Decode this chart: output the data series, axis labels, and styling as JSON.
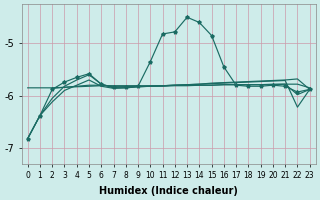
{
  "xlabel": "Humidex (Indice chaleur)",
  "background_color": "#ceecea",
  "line_color": "#1a6b63",
  "xlim": [
    -0.5,
    23.5
  ],
  "ylim": [
    -7.3,
    -4.25
  ],
  "yticks": [
    -7,
    -6,
    -5
  ],
  "xtick_labels": [
    "0",
    "1",
    "2",
    "3",
    "4",
    "5",
    "6",
    "7",
    "8",
    "9",
    "10",
    "11",
    "12",
    "13",
    "14",
    "15",
    "16",
    "17",
    "18",
    "19",
    "20",
    "21",
    "22",
    "23"
  ],
  "line_gradual": {
    "x": [
      0,
      1,
      2,
      3,
      4,
      5,
      6,
      7,
      8,
      9,
      10,
      11,
      12,
      13,
      14,
      15,
      16,
      17,
      18,
      19,
      20,
      21,
      22,
      23
    ],
    "y": [
      -6.82,
      -6.38,
      -6.05,
      -5.82,
      -5.7,
      -5.6,
      -5.78,
      -5.85,
      -5.85,
      -5.83,
      -5.82,
      -5.81,
      -5.8,
      -5.79,
      -5.78,
      -5.76,
      -5.75,
      -5.74,
      -5.73,
      -5.72,
      -5.71,
      -5.7,
      -5.68,
      -5.88
    ]
  },
  "line_peak": {
    "x": [
      0,
      1,
      2,
      3,
      4,
      5,
      6,
      7,
      8,
      9,
      10,
      11,
      12,
      13,
      14,
      15,
      16,
      17,
      18,
      19,
      20,
      21,
      22,
      23
    ],
    "y": [
      -6.82,
      -6.38,
      -5.88,
      -5.74,
      -5.65,
      -5.58,
      -5.78,
      -5.84,
      -5.83,
      -5.82,
      -5.35,
      -4.82,
      -4.78,
      -4.5,
      -4.6,
      -4.85,
      -5.45,
      -5.8,
      -5.82,
      -5.82,
      -5.8,
      -5.82,
      -5.93,
      -5.88
    ],
    "marker": true
  },
  "line_flat1": {
    "x": [
      0,
      1,
      2,
      3,
      4,
      5,
      6,
      7,
      8,
      9,
      10,
      11,
      12,
      13,
      14,
      15,
      16,
      17,
      18,
      19,
      20,
      21,
      22,
      23
    ],
    "y": [
      -5.85,
      -5.85,
      -5.85,
      -5.84,
      -5.83,
      -5.82,
      -5.81,
      -5.81,
      -5.81,
      -5.81,
      -5.81,
      -5.81,
      -5.8,
      -5.8,
      -5.8,
      -5.8,
      -5.79,
      -5.79,
      -5.79,
      -5.79,
      -5.79,
      -5.78,
      -5.78,
      -5.85
    ]
  },
  "line_flat2": {
    "x": [
      2,
      3,
      4,
      5,
      6,
      7,
      8,
      9,
      10,
      11,
      12,
      13,
      14,
      15,
      16,
      17,
      18,
      19,
      20,
      21,
      22,
      23
    ],
    "y": [
      -5.86,
      -5.84,
      -5.82,
      -5.8,
      -5.8,
      -5.82,
      -5.82,
      -5.82,
      -5.82,
      -5.82,
      -5.81,
      -5.81,
      -5.8,
      -5.8,
      -5.79,
      -5.79,
      -5.79,
      -5.79,
      -5.78,
      -5.78,
      -5.98,
      -5.88
    ]
  },
  "line_slow": {
    "x": [
      0,
      1,
      2,
      3,
      4,
      5,
      6,
      7,
      8,
      9,
      10,
      11,
      12,
      13,
      14,
      15,
      16,
      17,
      18,
      19,
      20,
      21,
      22,
      23
    ],
    "y": [
      -6.82,
      -6.38,
      -6.12,
      -5.9,
      -5.8,
      -5.7,
      -5.82,
      -5.86,
      -5.85,
      -5.83,
      -5.82,
      -5.81,
      -5.8,
      -5.79,
      -5.78,
      -5.77,
      -5.76,
      -5.75,
      -5.74,
      -5.73,
      -5.72,
      -5.71,
      -6.22,
      -5.88
    ]
  }
}
